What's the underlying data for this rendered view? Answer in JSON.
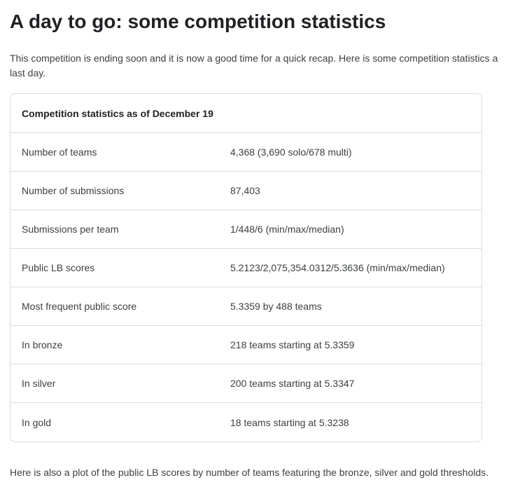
{
  "post": {
    "title": "A day to go: some competition statistics",
    "intro_line1": "This competition is ending soon and it is now a good time for a quick recap. Here is some competition statistics a",
    "intro_line2": "last day.",
    "outro": "Here is also a plot of the public LB scores by number of teams featuring the bronze, silver and gold thresholds."
  },
  "stats_table": {
    "header": "Competition statistics as of December 19",
    "rows": [
      {
        "label": "Number of teams",
        "value": "4,368 (3,690 solo/678 multi)"
      },
      {
        "label": "Number of submissions",
        "value": "87,403"
      },
      {
        "label": "Submissions per team",
        "value": "1/448/6 (min/max/median)"
      },
      {
        "label": "Public LB scores",
        "value": "5.2123/2,075,354.0312/5.3636 (min/max/median)"
      },
      {
        "label": "Most frequent public score",
        "value": "5.3359 by 488 teams"
      },
      {
        "label": "In bronze",
        "value": "218 teams starting at 5.3359"
      },
      {
        "label": "In silver",
        "value": "200 teams starting at 5.3347"
      },
      {
        "label": "In gold",
        "value": "18 teams starting at 5.3238"
      }
    ]
  }
}
